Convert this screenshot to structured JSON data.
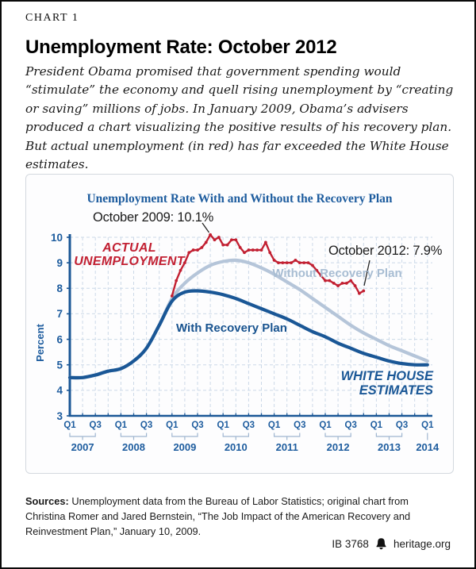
{
  "header": {
    "kicker": "CHART 1",
    "title": "Unemployment Rate: October 2012",
    "deck": "President Obama promised that government spending would “stimulate” the economy and quell rising unemployment by “creating or saving” millions of jobs. In January 2009, Obama’s advisers produced a chart visualizing the positive results of his recovery plan. But actual unemployment (in red) has far exceeded the White House estimates."
  },
  "chart_data": {
    "type": "line",
    "title": "Unemployment Rate With and Without the Recovery Plan",
    "ylabel": "Percent",
    "ylim": [
      3,
      10
    ],
    "yticks": [
      3,
      4,
      5,
      6,
      7,
      8,
      9,
      10
    ],
    "grid": true,
    "years": [
      "2007",
      "2008",
      "2009",
      "2010",
      "2011",
      "2012",
      "2013",
      "2014"
    ],
    "quarter_labels": [
      "Q1",
      "Q3"
    ],
    "series": [
      {
        "name": "Without Recovery Plan",
        "color": "#b5c5d9",
        "width": 4.2,
        "freq": "quarterly",
        "start_q": 0,
        "smooth": true,
        "markers": false,
        "values": [
          4.5,
          4.5,
          4.6,
          4.75,
          4.85,
          5.15,
          5.65,
          6.55,
          7.6,
          8.2,
          8.6,
          8.9,
          9.05,
          9.1,
          9.0,
          8.8,
          8.55,
          8.25,
          7.95,
          7.6,
          7.25,
          6.9,
          6.55,
          6.25,
          6.0,
          5.75,
          5.55,
          5.35,
          5.15
        ]
      },
      {
        "name": "With Recovery Plan",
        "color": "#1a5796",
        "width": 4.2,
        "freq": "quarterly",
        "start_q": 0,
        "smooth": true,
        "markers": false,
        "values": [
          4.5,
          4.5,
          4.6,
          4.75,
          4.85,
          5.15,
          5.65,
          6.55,
          7.5,
          7.85,
          7.9,
          7.85,
          7.75,
          7.6,
          7.4,
          7.2,
          7.0,
          6.8,
          6.55,
          6.3,
          6.1,
          5.85,
          5.65,
          5.45,
          5.3,
          5.15,
          5.05,
          5.0,
          5.0
        ]
      },
      {
        "name": "Actual Unemployment",
        "color": "#c22032",
        "width": 2.4,
        "freq": "monthly",
        "start_q": 8,
        "smooth": false,
        "markers": true,
        "values": [
          7.7,
          8.3,
          8.7,
          9.0,
          9.4,
          9.5,
          9.5,
          9.6,
          9.8,
          10.1,
          9.9,
          10.0,
          9.7,
          9.7,
          9.9,
          9.9,
          9.6,
          9.4,
          9.5,
          9.5,
          9.5,
          9.5,
          9.8,
          9.4,
          9.1,
          9.0,
          9.0,
          9.0,
          9.0,
          9.1,
          9.0,
          9.0,
          9.0,
          8.9,
          8.7,
          8.5,
          8.3,
          8.3,
          8.2,
          8.1,
          8.2,
          8.2,
          8.3,
          8.1,
          7.8,
          7.9
        ]
      }
    ],
    "labels": {
      "callout_peak": "October 2009: 10.1%",
      "callout_end": "October 2012: 7.9%",
      "actual_1": "ACTUAL",
      "actual_2": "UNEMPLOYMENT",
      "without": "Without Recovery Plan",
      "with": "With Recovery Plan",
      "wh_1": "WHITE HOUSE",
      "wh_2": "ESTIMATES"
    }
  },
  "footer": {
    "sources_label": "Sources:",
    "sources_text": " Unemployment data from the Bureau of Labor Statistics; original chart from Christina Romer and Jared Bernstein, “The Job Impact of the American Recovery and Reinvestment Plan,” January 10, 2009.",
    "doc_id": "IB 3768",
    "site": "heritage.org"
  }
}
